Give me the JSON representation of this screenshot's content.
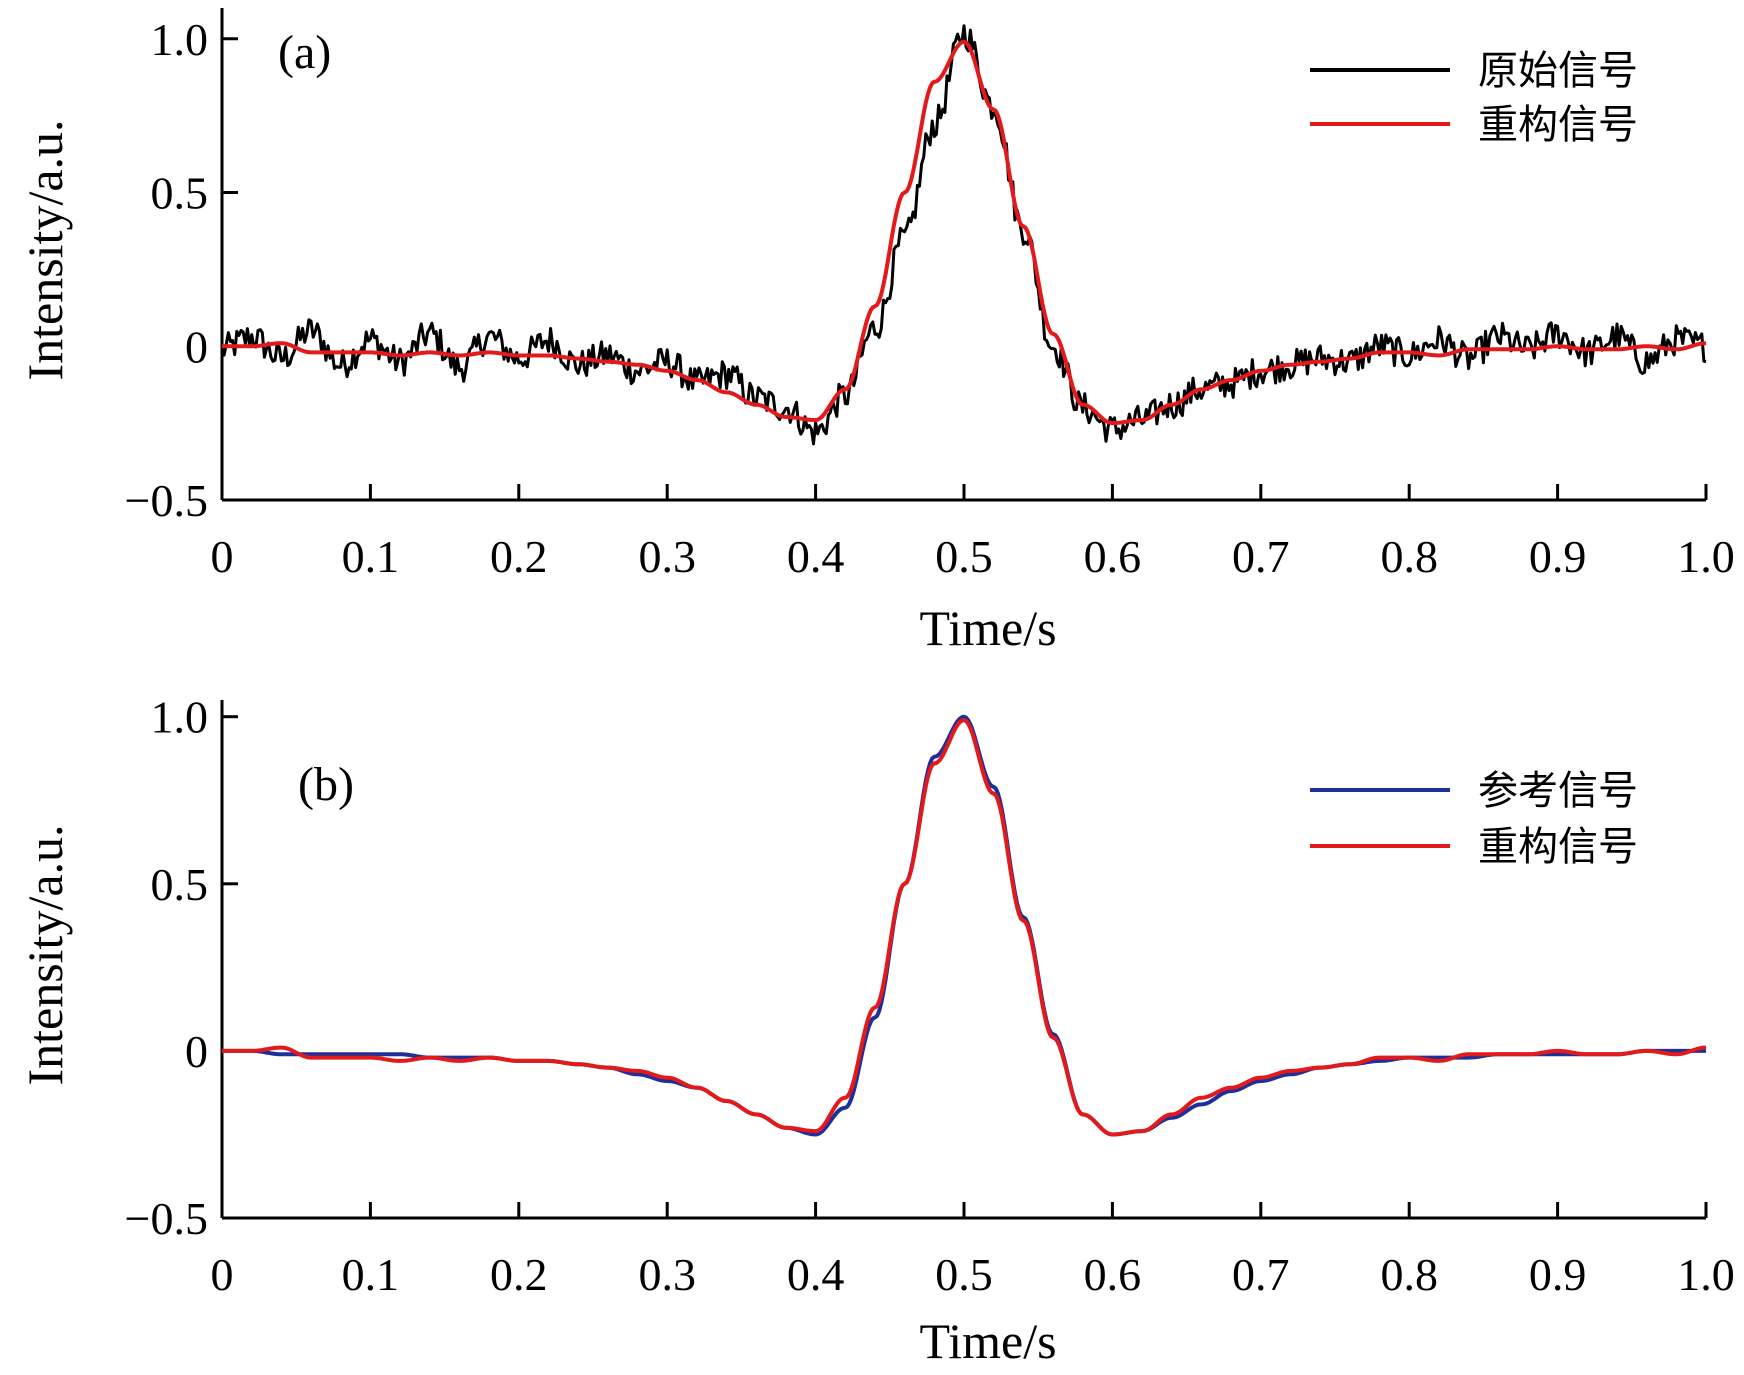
{
  "chart_data": [
    {
      "type": "line",
      "panel_label": "(a)",
      "xlabel": "Time/s",
      "ylabel": "Intensity/a.u.",
      "xlim": [
        0,
        1.0
      ],
      "ylim": [
        -0.5,
        1.1
      ],
      "x_ticks": [
        0,
        0.1,
        0.2,
        0.3,
        0.4,
        0.5,
        0.6,
        0.7,
        0.8,
        0.9,
        1.0
      ],
      "x_tick_labels": [
        "0",
        "0.1",
        "0.2",
        "0.3",
        "0.4",
        "0.5",
        "0.6",
        "0.7",
        "0.8",
        "0.9",
        "1.0"
      ],
      "y_ticks": [
        -0.5,
        0,
        0.5,
        1.0
      ],
      "y_tick_labels": [
        "−0.5",
        "0",
        "0.5",
        "1.0"
      ],
      "legend_position": "top-right",
      "series": [
        {
          "name": "原始信号",
          "color": "#000000",
          "x": [
            0,
            0.02,
            0.04,
            0.06,
            0.08,
            0.1,
            0.12,
            0.14,
            0.16,
            0.18,
            0.2,
            0.22,
            0.24,
            0.26,
            0.28,
            0.3,
            0.32,
            0.34,
            0.36,
            0.38,
            0.4,
            0.42,
            0.44,
            0.46,
            0.48,
            0.5,
            0.52,
            0.54,
            0.56,
            0.58,
            0.6,
            0.62,
            0.64,
            0.66,
            0.68,
            0.7,
            0.72,
            0.74,
            0.76,
            0.78,
            0.8,
            0.82,
            0.84,
            0.86,
            0.88,
            0.9,
            0.92,
            0.94,
            0.96,
            0.98,
            1.0
          ],
          "values": [
            -0.01,
            0.03,
            -0.04,
            0.05,
            -0.06,
            0.02,
            -0.05,
            0.04,
            -0.07,
            0.03,
            -0.04,
            0.02,
            -0.06,
            -0.03,
            -0.08,
            -0.05,
            -0.12,
            -0.09,
            -0.17,
            -0.2,
            -0.28,
            -0.16,
            0.06,
            0.35,
            0.72,
            1.02,
            0.78,
            0.38,
            0.0,
            -0.2,
            -0.27,
            -0.24,
            -0.19,
            -0.14,
            -0.12,
            -0.08,
            -0.06,
            -0.04,
            -0.05,
            0.0,
            -0.03,
            0.02,
            -0.04,
            0.03,
            -0.01,
            0.04,
            -0.02,
            0.03,
            -0.05,
            0.02,
            0.0
          ],
          "noise_amplitude": 0.05
        },
        {
          "name": "重构信号",
          "color": "#e31a1c",
          "x": [
            0,
            0.02,
            0.04,
            0.06,
            0.08,
            0.1,
            0.12,
            0.14,
            0.16,
            0.18,
            0.2,
            0.22,
            0.24,
            0.26,
            0.28,
            0.3,
            0.32,
            0.34,
            0.36,
            0.38,
            0.4,
            0.42,
            0.44,
            0.46,
            0.48,
            0.5,
            0.52,
            0.54,
            0.56,
            0.58,
            0.6,
            0.62,
            0.64,
            0.66,
            0.68,
            0.7,
            0.72,
            0.74,
            0.76,
            0.78,
            0.8,
            0.82,
            0.84,
            0.86,
            0.88,
            0.9,
            0.92,
            0.94,
            0.96,
            0.98,
            1.0
          ],
          "values": [
            0.0,
            0.0,
            0.01,
            -0.02,
            -0.02,
            -0.02,
            -0.03,
            -0.02,
            -0.03,
            -0.02,
            -0.03,
            -0.03,
            -0.04,
            -0.05,
            -0.06,
            -0.08,
            -0.11,
            -0.15,
            -0.19,
            -0.23,
            -0.24,
            -0.14,
            0.13,
            0.5,
            0.86,
            0.99,
            0.77,
            0.39,
            0.04,
            -0.19,
            -0.25,
            -0.24,
            -0.19,
            -0.14,
            -0.11,
            -0.08,
            -0.06,
            -0.05,
            -0.04,
            -0.02,
            -0.02,
            -0.03,
            -0.01,
            -0.01,
            -0.01,
            0.0,
            -0.01,
            -0.01,
            0.0,
            -0.01,
            0.01
          ]
        }
      ]
    },
    {
      "type": "line",
      "panel_label": "(b)",
      "xlabel": "Time/s",
      "ylabel": "Intensity/a.u.",
      "xlim": [
        0,
        1.0
      ],
      "ylim": [
        -0.5,
        1.05
      ],
      "x_ticks": [
        0,
        0.1,
        0.2,
        0.3,
        0.4,
        0.5,
        0.6,
        0.7,
        0.8,
        0.9,
        1.0
      ],
      "x_tick_labels": [
        "0",
        "0.1",
        "0.2",
        "0.3",
        "0.4",
        "0.5",
        "0.6",
        "0.7",
        "0.8",
        "0.9",
        "1.0"
      ],
      "y_ticks": [
        -0.5,
        0,
        0.5,
        1.0
      ],
      "y_tick_labels": [
        "−0.5",
        "0",
        "0.5",
        "1.0"
      ],
      "legend_position": "top-right",
      "series": [
        {
          "name": "参考信号",
          "color": "#1f2f9a",
          "x": [
            0,
            0.02,
            0.04,
            0.06,
            0.08,
            0.1,
            0.12,
            0.14,
            0.16,
            0.18,
            0.2,
            0.22,
            0.24,
            0.26,
            0.28,
            0.3,
            0.32,
            0.34,
            0.36,
            0.38,
            0.4,
            0.42,
            0.44,
            0.46,
            0.48,
            0.5,
            0.52,
            0.54,
            0.56,
            0.58,
            0.6,
            0.62,
            0.64,
            0.66,
            0.68,
            0.7,
            0.72,
            0.74,
            0.76,
            0.78,
            0.8,
            0.82,
            0.84,
            0.86,
            0.88,
            0.9,
            0.92,
            0.94,
            0.96,
            0.98,
            1.0
          ],
          "values": [
            0.0,
            0.0,
            -0.01,
            -0.01,
            -0.01,
            -0.01,
            -0.01,
            -0.02,
            -0.02,
            -0.02,
            -0.03,
            -0.03,
            -0.04,
            -0.05,
            -0.07,
            -0.09,
            -0.11,
            -0.15,
            -0.19,
            -0.23,
            -0.25,
            -0.17,
            0.1,
            0.5,
            0.88,
            1.0,
            0.79,
            0.4,
            0.05,
            -0.19,
            -0.25,
            -0.24,
            -0.2,
            -0.16,
            -0.12,
            -0.09,
            -0.07,
            -0.05,
            -0.04,
            -0.03,
            -0.02,
            -0.02,
            -0.02,
            -0.01,
            -0.01,
            -0.01,
            -0.01,
            -0.01,
            0.0,
            0.0,
            0.0
          ]
        },
        {
          "name": "重构信号",
          "color": "#e31a1c",
          "x": [
            0,
            0.02,
            0.04,
            0.06,
            0.08,
            0.1,
            0.12,
            0.14,
            0.16,
            0.18,
            0.2,
            0.22,
            0.24,
            0.26,
            0.28,
            0.3,
            0.32,
            0.34,
            0.36,
            0.38,
            0.4,
            0.42,
            0.44,
            0.46,
            0.48,
            0.5,
            0.52,
            0.54,
            0.56,
            0.58,
            0.6,
            0.62,
            0.64,
            0.66,
            0.68,
            0.7,
            0.72,
            0.74,
            0.76,
            0.78,
            0.8,
            0.82,
            0.84,
            0.86,
            0.88,
            0.9,
            0.92,
            0.94,
            0.96,
            0.98,
            1.0
          ],
          "values": [
            0.0,
            0.0,
            0.01,
            -0.02,
            -0.02,
            -0.02,
            -0.03,
            -0.02,
            -0.03,
            -0.02,
            -0.03,
            -0.03,
            -0.04,
            -0.05,
            -0.06,
            -0.08,
            -0.11,
            -0.15,
            -0.19,
            -0.23,
            -0.24,
            -0.14,
            0.13,
            0.5,
            0.86,
            0.99,
            0.77,
            0.39,
            0.04,
            -0.19,
            -0.25,
            -0.24,
            -0.19,
            -0.14,
            -0.11,
            -0.08,
            -0.06,
            -0.05,
            -0.04,
            -0.02,
            -0.02,
            -0.03,
            -0.01,
            -0.01,
            -0.01,
            0.0,
            -0.01,
            -0.01,
            0.0,
            -0.01,
            0.01
          ]
        }
      ]
    }
  ]
}
